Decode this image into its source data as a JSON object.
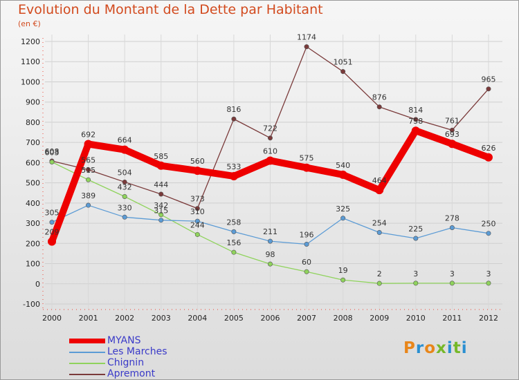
{
  "title": "Evolution du Montant de la Dette par Habitant",
  "unit": "(en €)",
  "logo": {
    "text": "Proxiti",
    "colors": [
      "#e8861a",
      "#2a8fd1",
      "#e8861a",
      "#76b82a",
      "#2a8fd1",
      "#76b82a",
      "#2a8fd1"
    ]
  },
  "chart_data": {
    "type": "line",
    "x": [
      "2000",
      "2001",
      "2002",
      "2003",
      "2004",
      "2005",
      "2006",
      "2007",
      "2008",
      "2009",
      "2010",
      "2011",
      "2012"
    ],
    "ylim": [
      -100,
      1200
    ],
    "yticks": [
      -100,
      0,
      100,
      200,
      300,
      400,
      500,
      600,
      700,
      800,
      900,
      1000,
      1100,
      1200
    ],
    "grid": true,
    "legend_position": "bottom-left",
    "series": [
      {
        "name": "Apremont",
        "color": "#7a3a3a",
        "values": [
          608,
          565,
          504,
          444,
          373,
          816,
          722,
          1174,
          1051,
          876,
          814,
          761,
          965
        ]
      },
      {
        "name": "Chignin",
        "color": "#8fd35c",
        "values": [
          603,
          515,
          432,
          342,
          244,
          156,
          98,
          60,
          19,
          2,
          3,
          3,
          3
        ]
      },
      {
        "name": "Les Marches",
        "color": "#5b9bd5",
        "values": [
          305,
          389,
          330,
          315,
          310,
          258,
          211,
          196,
          325,
          254,
          225,
          278,
          250
        ]
      },
      {
        "name": "MYANS",
        "color": "#ee0000",
        "values": [
          209,
          692,
          664,
          585,
          560,
          533,
          610,
          575,
          540,
          464,
          758,
          693,
          626
        ]
      }
    ],
    "legend": [
      {
        "name": "MYANS",
        "color": "#ee0000",
        "thick": true
      },
      {
        "name": "Les Marches",
        "color": "#5b9bd5",
        "thick": false
      },
      {
        "name": "Chignin",
        "color": "#8fd35c",
        "thick": false
      },
      {
        "name": "Apremont",
        "color": "#7a3a3a",
        "thick": false
      }
    ]
  }
}
